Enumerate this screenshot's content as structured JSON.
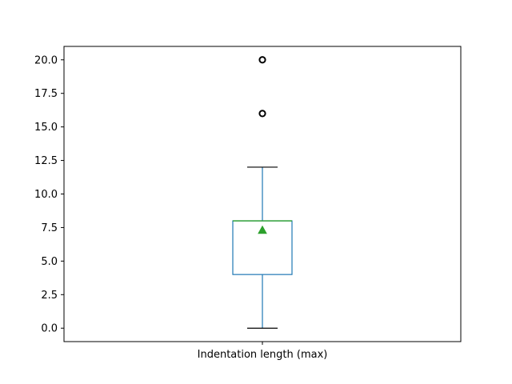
{
  "chart_data": {
    "type": "box",
    "categories": [
      "Indentation length (max)"
    ],
    "boxes": [
      {
        "name": "Indentation length (max)",
        "whisker_low": 0,
        "q1": 4,
        "median": 8,
        "q3": 8,
        "whisker_high": 12,
        "mean": 7.3,
        "outliers": [
          16,
          20
        ]
      }
    ],
    "ylim": [
      -1,
      21
    ],
    "yticks": [
      0.0,
      2.5,
      5.0,
      7.5,
      10.0,
      12.5,
      15.0,
      17.5,
      20.0
    ],
    "ytick_labels": [
      "0.0",
      "2.5",
      "5.0",
      "7.5",
      "10.0",
      "12.5",
      "15.0",
      "17.5",
      "20.0"
    ],
    "grid": false,
    "colors": {
      "box": "#1f77b4",
      "median": "#2ca02c",
      "mean_marker": "#2ca02c",
      "whisker_cap": "#000000",
      "outlier": "#000000"
    }
  }
}
